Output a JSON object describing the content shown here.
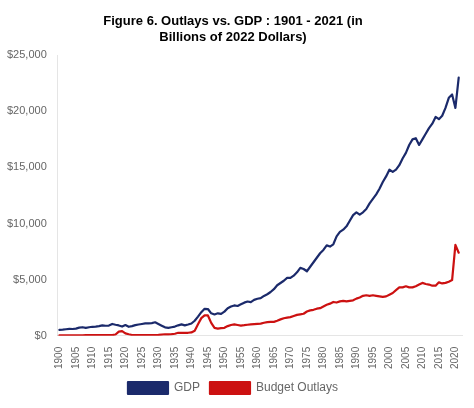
{
  "chart_data": {
    "type": "line",
    "title": "Figure 6. Outlays vs. GDP : 1901 - 2021 (in\nBillions of 2022 Dollars)",
    "x": [
      1900,
      1901,
      1902,
      1903,
      1904,
      1905,
      1906,
      1907,
      1908,
      1909,
      1910,
      1911,
      1912,
      1913,
      1914,
      1915,
      1916,
      1917,
      1918,
      1919,
      1920,
      1921,
      1922,
      1923,
      1924,
      1925,
      1926,
      1927,
      1928,
      1929,
      1930,
      1931,
      1932,
      1933,
      1934,
      1935,
      1936,
      1937,
      1938,
      1939,
      1940,
      1941,
      1942,
      1943,
      1944,
      1945,
      1946,
      1947,
      1948,
      1949,
      1950,
      1951,
      1952,
      1953,
      1954,
      1955,
      1956,
      1957,
      1958,
      1959,
      1960,
      1961,
      1962,
      1963,
      1964,
      1965,
      1966,
      1967,
      1968,
      1969,
      1970,
      1971,
      1972,
      1973,
      1974,
      1975,
      1976,
      1977,
      1978,
      1979,
      1980,
      1981,
      1982,
      1983,
      1984,
      1985,
      1986,
      1987,
      1988,
      1989,
      1990,
      1991,
      1992,
      1993,
      1994,
      1995,
      1996,
      1997,
      1998,
      1999,
      2000,
      2001,
      2002,
      2003,
      2004,
      2005,
      2006,
      2007,
      2008,
      2009,
      2010,
      2011,
      2012,
      2013,
      2014,
      2015,
      2016,
      2017,
      2018,
      2019,
      2020,
      2021
    ],
    "series": [
      {
        "name": "GDP",
        "color": "#1b2a6b",
        "values": [
          530,
          550,
          580,
          610,
          600,
          640,
          720,
          760,
          700,
          760,
          800,
          810,
          860,
          920,
          890,
          910,
          1050,
          980,
          920,
          820,
          950,
          800,
          860,
          950,
          1000,
          1050,
          1100,
          1100,
          1130,
          1200,
          1050,
          900,
          750,
          700,
          760,
          820,
          930,
          1010,
          930,
          1000,
          1090,
          1340,
          1700,
          2100,
          2400,
          2380,
          2000,
          1900,
          2000,
          1950,
          2150,
          2450,
          2600,
          2700,
          2650,
          2800,
          2950,
          3050,
          3000,
          3200,
          3300,
          3350,
          3550,
          3700,
          3900,
          4150,
          4500,
          4700,
          4900,
          5150,
          5150,
          5350,
          5650,
          6050,
          5950,
          5750,
          6150,
          6550,
          6950,
          7350,
          7650,
          8050,
          7950,
          8150,
          8850,
          9250,
          9450,
          9750,
          10250,
          10750,
          11000,
          10800,
          11000,
          11300,
          11800,
          12200,
          12600,
          13100,
          13700,
          14200,
          14800,
          14600,
          14800,
          15200,
          15800,
          16300,
          17000,
          17500,
          17600,
          17000,
          17500,
          18000,
          18500,
          18900,
          19500,
          19300,
          19600,
          20300,
          21200,
          21500,
          20300,
          23000
        ]
      },
      {
        "name": "Budget Outlays",
        "color": "#cc1111",
        "values": [
          40,
          42,
          45,
          46,
          46,
          43,
          42,
          46,
          55,
          50,
          55,
          55,
          55,
          55,
          58,
          62,
          58,
          110,
          370,
          420,
          210,
          130,
          65,
          65,
          57,
          57,
          52,
          55,
          55,
          55,
          75,
          105,
          135,
          125,
          145,
          180,
          265,
          255,
          255,
          265,
          295,
          450,
          1020,
          1570,
          1820,
          1810,
          1150,
          700,
          640,
          680,
          710,
          860,
          960,
          1010,
          960,
          910,
          940,
          980,
          1020,
          1040,
          1060,
          1080,
          1160,
          1210,
          1240,
          1240,
          1340,
          1460,
          1560,
          1610,
          1660,
          1760,
          1860,
          1910,
          1960,
          2160,
          2260,
          2310,
          2410,
          2460,
          2610,
          2760,
          2860,
          3010,
          2960,
          3060,
          3110,
          3060,
          3110,
          3160,
          3310,
          3410,
          3560,
          3610,
          3560,
          3610,
          3560,
          3510,
          3460,
          3510,
          3660,
          3810,
          4060,
          4310,
          4310,
          4410,
          4310,
          4310,
          4410,
          4560,
          4710,
          4610,
          4560,
          4460,
          4460,
          4760,
          4660,
          4710,
          4810,
          4960,
          8100,
          7400
        ]
      }
    ],
    "xlim": [
      1899.5,
      2022
    ],
    "xticks": [
      1900,
      1905,
      1910,
      1915,
      1920,
      1925,
      1930,
      1935,
      1940,
      1945,
      1950,
      1955,
      1960,
      1965,
      1970,
      1975,
      1980,
      1985,
      1990,
      1995,
      2000,
      2005,
      2010,
      2015,
      2020
    ],
    "ylim": [
      0,
      25000
    ],
    "yticks": [
      {
        "value": 0,
        "label": "$0"
      },
      {
        "value": 5000,
        "label": "$5,000"
      },
      {
        "value": 10000,
        "label": "$10,000"
      },
      {
        "value": 15000,
        "label": "$15,000"
      },
      {
        "value": 20000,
        "label": "$20,000"
      },
      {
        "value": 25000,
        "label": "$25,000"
      }
    ],
    "grid": false,
    "legend": "bottom"
  }
}
